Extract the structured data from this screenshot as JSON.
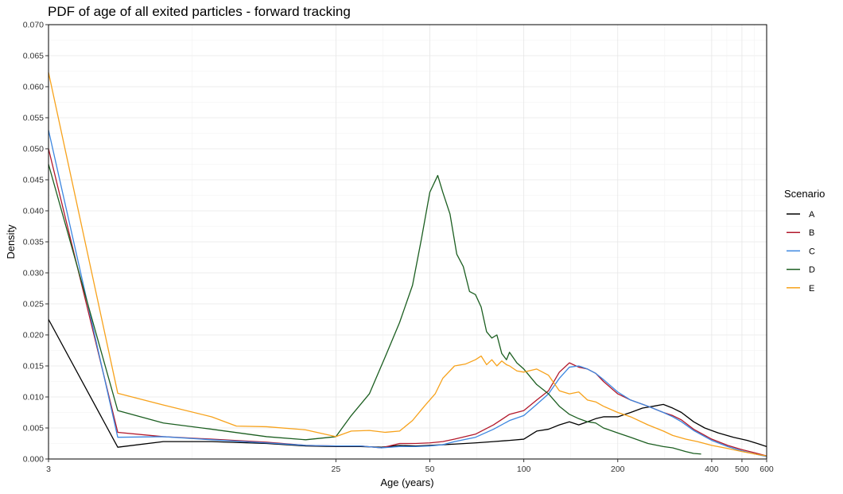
{
  "chart_data": {
    "type": "line",
    "title": "PDF of age of all exited particles - forward tracking",
    "xlabel": "Age (years)",
    "ylabel": "Density",
    "x_scale": "log",
    "xlim": [
      3,
      600
    ],
    "ylim": [
      0,
      0.07
    ],
    "x_ticks": [
      3,
      25,
      50,
      100,
      200,
      400,
      500,
      600
    ],
    "x_tick_labels": [
      "3",
      "25",
      "50",
      "100",
      "200",
      "400",
      "500",
      "600"
    ],
    "y_ticks": [
      0,
      0.005,
      0.01,
      0.015,
      0.02,
      0.025,
      0.03,
      0.035,
      0.04,
      0.045,
      0.05,
      0.055,
      0.06,
      0.065,
      0.07
    ],
    "y_tick_labels": [
      "0.000",
      "0.005",
      "0.010",
      "0.015",
      "0.020",
      "0.025",
      "0.030",
      "0.035",
      "0.040",
      "0.045",
      "0.050",
      "0.055",
      "0.060",
      "0.065",
      "0.070"
    ],
    "grid": true,
    "legend": {
      "title": "Scenario",
      "position": "right"
    },
    "series": [
      {
        "name": "A",
        "color": "#000000",
        "points": [
          [
            3,
            0.0225
          ],
          [
            5,
            0.0019
          ],
          [
            7,
            0.0028
          ],
          [
            10,
            0.0028
          ],
          [
            15,
            0.0025
          ],
          [
            20,
            0.0021
          ],
          [
            25,
            0.002
          ],
          [
            30,
            0.002
          ],
          [
            35,
            0.0019
          ],
          [
            40,
            0.0022
          ],
          [
            45,
            0.0021
          ],
          [
            50,
            0.0022
          ],
          [
            55,
            0.0023
          ],
          [
            60,
            0.0024
          ],
          [
            70,
            0.0026
          ],
          [
            80,
            0.0028
          ],
          [
            90,
            0.003
          ],
          [
            100,
            0.0032
          ],
          [
            110,
            0.0045
          ],
          [
            120,
            0.0048
          ],
          [
            130,
            0.0055
          ],
          [
            140,
            0.006
          ],
          [
            150,
            0.0055
          ],
          [
            160,
            0.006
          ],
          [
            170,
            0.0065
          ],
          [
            180,
            0.0068
          ],
          [
            200,
            0.0068
          ],
          [
            220,
            0.0075
          ],
          [
            240,
            0.0082
          ],
          [
            260,
            0.0085
          ],
          [
            280,
            0.0088
          ],
          [
            300,
            0.0082
          ],
          [
            320,
            0.0075
          ],
          [
            350,
            0.006
          ],
          [
            380,
            0.005
          ],
          [
            420,
            0.0042
          ],
          [
            470,
            0.0035
          ],
          [
            520,
            0.003
          ],
          [
            560,
            0.0025
          ],
          [
            600,
            0.002
          ]
        ]
      },
      {
        "name": "B",
        "color": "#b2182b",
        "points": [
          [
            3,
            0.05
          ],
          [
            5,
            0.0043
          ],
          [
            7,
            0.0036
          ],
          [
            10,
            0.0032
          ],
          [
            15,
            0.0027
          ],
          [
            20,
            0.0022
          ],
          [
            25,
            0.0021
          ],
          [
            30,
            0.0021
          ],
          [
            35,
            0.0018
          ],
          [
            40,
            0.0025
          ],
          [
            45,
            0.0025
          ],
          [
            50,
            0.0026
          ],
          [
            55,
            0.0028
          ],
          [
            60,
            0.0032
          ],
          [
            70,
            0.004
          ],
          [
            80,
            0.0055
          ],
          [
            90,
            0.0072
          ],
          [
            100,
            0.0078
          ],
          [
            110,
            0.0095
          ],
          [
            120,
            0.011
          ],
          [
            130,
            0.014
          ],
          [
            140,
            0.0155
          ],
          [
            150,
            0.0148
          ],
          [
            160,
            0.0145
          ],
          [
            170,
            0.0138
          ],
          [
            180,
            0.0125
          ],
          [
            200,
            0.0105
          ],
          [
            220,
            0.0095
          ],
          [
            250,
            0.0085
          ],
          [
            280,
            0.0075
          ],
          [
            300,
            0.007
          ],
          [
            320,
            0.0063
          ],
          [
            350,
            0.0048
          ],
          [
            400,
            0.0032
          ],
          [
            450,
            0.0022
          ],
          [
            500,
            0.0015
          ],
          [
            550,
            0.001
          ],
          [
            600,
            0.0005
          ]
        ]
      },
      {
        "name": "C",
        "color": "#3b86e0",
        "points": [
          [
            3,
            0.053
          ],
          [
            5,
            0.0035
          ],
          [
            7,
            0.0036
          ],
          [
            10,
            0.0031
          ],
          [
            15,
            0.0026
          ],
          [
            20,
            0.0022
          ],
          [
            25,
            0.0021
          ],
          [
            30,
            0.0021
          ],
          [
            35,
            0.0018
          ],
          [
            40,
            0.002
          ],
          [
            45,
            0.002
          ],
          [
            50,
            0.0021
          ],
          [
            55,
            0.0023
          ],
          [
            60,
            0.0028
          ],
          [
            70,
            0.0035
          ],
          [
            80,
            0.0048
          ],
          [
            90,
            0.0062
          ],
          [
            100,
            0.007
          ],
          [
            110,
            0.0088
          ],
          [
            120,
            0.0105
          ],
          [
            130,
            0.013
          ],
          [
            140,
            0.0148
          ],
          [
            150,
            0.015
          ],
          [
            160,
            0.0145
          ],
          [
            170,
            0.0138
          ],
          [
            180,
            0.0128
          ],
          [
            200,
            0.0108
          ],
          [
            220,
            0.0095
          ],
          [
            250,
            0.0085
          ],
          [
            280,
            0.0075
          ],
          [
            300,
            0.0068
          ],
          [
            320,
            0.006
          ],
          [
            350,
            0.0046
          ],
          [
            400,
            0.003
          ],
          [
            450,
            0.002
          ],
          [
            500,
            0.0013
          ],
          [
            550,
            0.0008
          ],
          [
            600,
            0.0004
          ]
        ]
      },
      {
        "name": "D",
        "color": "#1b5e20",
        "points": [
          [
            3,
            0.0475
          ],
          [
            5,
            0.0078
          ],
          [
            7,
            0.0058
          ],
          [
            10,
            0.0048
          ],
          [
            15,
            0.0036
          ],
          [
            20,
            0.0031
          ],
          [
            25,
            0.0036
          ],
          [
            28,
            0.007
          ],
          [
            32,
            0.0105
          ],
          [
            36,
            0.0165
          ],
          [
            40,
            0.022
          ],
          [
            44,
            0.028
          ],
          [
            47,
            0.0355
          ],
          [
            50,
            0.043
          ],
          [
            53,
            0.0457
          ],
          [
            55,
            0.043
          ],
          [
            58,
            0.0395
          ],
          [
            61,
            0.033
          ],
          [
            64,
            0.031
          ],
          [
            67,
            0.027
          ],
          [
            70,
            0.0265
          ],
          [
            73,
            0.0245
          ],
          [
            76,
            0.0205
          ],
          [
            79,
            0.0195
          ],
          [
            82,
            0.02
          ],
          [
            85,
            0.017
          ],
          [
            88,
            0.016
          ],
          [
            90,
            0.0172
          ],
          [
            95,
            0.0155
          ],
          [
            100,
            0.0145
          ],
          [
            110,
            0.012
          ],
          [
            120,
            0.0105
          ],
          [
            130,
            0.0085
          ],
          [
            140,
            0.0072
          ],
          [
            150,
            0.0065
          ],
          [
            160,
            0.006
          ],
          [
            170,
            0.0058
          ],
          [
            180,
            0.005
          ],
          [
            200,
            0.0042
          ],
          [
            220,
            0.0035
          ],
          [
            250,
            0.0025
          ],
          [
            280,
            0.002
          ],
          [
            300,
            0.0018
          ],
          [
            330,
            0.0012
          ],
          [
            350,
            0.0009
          ],
          [
            370,
            0.0008
          ]
        ]
      },
      {
        "name": "E",
        "color": "#f7a21b",
        "points": [
          [
            3,
            0.0623
          ],
          [
            5,
            0.0106
          ],
          [
            7,
            0.0087
          ],
          [
            10,
            0.0068
          ],
          [
            12,
            0.0053
          ],
          [
            15,
            0.0052
          ],
          [
            20,
            0.0047
          ],
          [
            25,
            0.0036
          ],
          [
            28,
            0.0045
          ],
          [
            32,
            0.0046
          ],
          [
            36,
            0.0043
          ],
          [
            40,
            0.0045
          ],
          [
            44,
            0.0062
          ],
          [
            48,
            0.0085
          ],
          [
            52,
            0.0105
          ],
          [
            55,
            0.013
          ],
          [
            60,
            0.015
          ],
          [
            65,
            0.0153
          ],
          [
            70,
            0.016
          ],
          [
            73,
            0.0166
          ],
          [
            76,
            0.0152
          ],
          [
            79,
            0.016
          ],
          [
            82,
            0.015
          ],
          [
            85,
            0.0158
          ],
          [
            88,
            0.0152
          ],
          [
            90,
            0.015
          ],
          [
            95,
            0.0142
          ],
          [
            100,
            0.014
          ],
          [
            110,
            0.0145
          ],
          [
            120,
            0.0135
          ],
          [
            130,
            0.011
          ],
          [
            140,
            0.0105
          ],
          [
            150,
            0.0108
          ],
          [
            160,
            0.0095
          ],
          [
            170,
            0.0092
          ],
          [
            180,
            0.0085
          ],
          [
            200,
            0.0075
          ],
          [
            220,
            0.0068
          ],
          [
            250,
            0.0055
          ],
          [
            280,
            0.0045
          ],
          [
            300,
            0.0038
          ],
          [
            330,
            0.0032
          ],
          [
            360,
            0.0028
          ],
          [
            400,
            0.0022
          ],
          [
            450,
            0.0017
          ],
          [
            500,
            0.0012
          ],
          [
            550,
            0.0008
          ],
          [
            600,
            0.0005
          ]
        ]
      }
    ]
  }
}
